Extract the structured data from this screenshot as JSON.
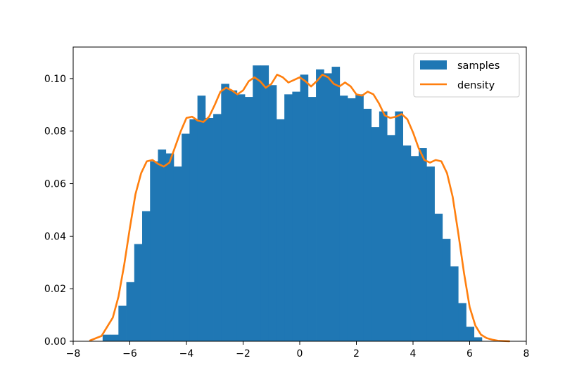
{
  "chart_data": {
    "type": "bar",
    "title": "",
    "xlabel": "",
    "ylabel": "",
    "xlim": [
      -8,
      8
    ],
    "ylim": [
      0,
      0.112
    ],
    "xticks": [
      -8,
      -6,
      -4,
      -2,
      0,
      2,
      4,
      6,
      8
    ],
    "xtick_labels": [
      "−8",
      "−6",
      "−4",
      "−2",
      "0",
      "2",
      "4",
      "6",
      "8"
    ],
    "yticks": [
      0.0,
      0.02,
      0.04,
      0.06,
      0.08,
      0.1
    ],
    "ytick_labels": [
      "0.00",
      "0.02",
      "0.04",
      "0.06",
      "0.08",
      "0.10"
    ],
    "grid": false,
    "legend_position": "top-right",
    "series": [
      {
        "name": "samples",
        "kind": "histogram",
        "color": "#1f77b4",
        "bin_start": -6.96,
        "bin_width": 0.279,
        "values": [
          0.0025,
          0.0025,
          0.0135,
          0.0225,
          0.037,
          0.0495,
          0.0685,
          0.073,
          0.0715,
          0.0665,
          0.079,
          0.0845,
          0.0935,
          0.085,
          0.0865,
          0.098,
          0.0955,
          0.094,
          0.093,
          0.105,
          0.105,
          0.0975,
          0.0845,
          0.094,
          0.095,
          0.1015,
          0.093,
          0.1035,
          0.102,
          0.1045,
          0.0935,
          0.0925,
          0.094,
          0.0885,
          0.0815,
          0.0875,
          0.0785,
          0.0875,
          0.0745,
          0.0705,
          0.0735,
          0.0665,
          0.0485,
          0.039,
          0.0285,
          0.0145,
          0.0055,
          0.0015
        ]
      },
      {
        "name": "density",
        "kind": "line",
        "color": "#ff7f0e",
        "x": [
          -7.4,
          -7.0,
          -6.6,
          -6.4,
          -6.2,
          -6.0,
          -5.8,
          -5.6,
          -5.4,
          -5.2,
          -5.0,
          -4.8,
          -4.6,
          -4.4,
          -4.2,
          -4.0,
          -3.8,
          -3.6,
          -3.4,
          -3.2,
          -3.0,
          -2.8,
          -2.6,
          -2.4,
          -2.2,
          -2.0,
          -1.8,
          -1.6,
          -1.4,
          -1.2,
          -1.0,
          -0.8,
          -0.6,
          -0.4,
          -0.2,
          0.0,
          0.2,
          0.4,
          0.6,
          0.8,
          1.0,
          1.2,
          1.4,
          1.6,
          1.8,
          2.0,
          2.2,
          2.4,
          2.6,
          2.8,
          3.0,
          3.2,
          3.4,
          3.6,
          3.8,
          4.0,
          4.2,
          4.4,
          4.6,
          4.8,
          5.0,
          5.2,
          5.4,
          5.6,
          5.8,
          6.0,
          6.2,
          6.4,
          6.6,
          6.8,
          7.0,
          7.4
        ],
        "y": [
          0.0003,
          0.002,
          0.009,
          0.017,
          0.029,
          0.043,
          0.056,
          0.064,
          0.0685,
          0.069,
          0.0675,
          0.0665,
          0.068,
          0.074,
          0.08,
          0.085,
          0.0855,
          0.084,
          0.0835,
          0.0855,
          0.09,
          0.095,
          0.0965,
          0.0955,
          0.094,
          0.0955,
          0.099,
          0.1005,
          0.099,
          0.0965,
          0.098,
          0.1015,
          0.1005,
          0.0985,
          0.0995,
          0.1005,
          0.099,
          0.097,
          0.099,
          0.1015,
          0.1005,
          0.098,
          0.097,
          0.0985,
          0.097,
          0.094,
          0.0935,
          0.095,
          0.094,
          0.0905,
          0.086,
          0.085,
          0.0855,
          0.0865,
          0.0845,
          0.0795,
          0.0735,
          0.069,
          0.068,
          0.069,
          0.0685,
          0.064,
          0.055,
          0.041,
          0.026,
          0.013,
          0.006,
          0.0025,
          0.0012,
          0.0006,
          0.0002,
          0.0
        ]
      }
    ]
  }
}
